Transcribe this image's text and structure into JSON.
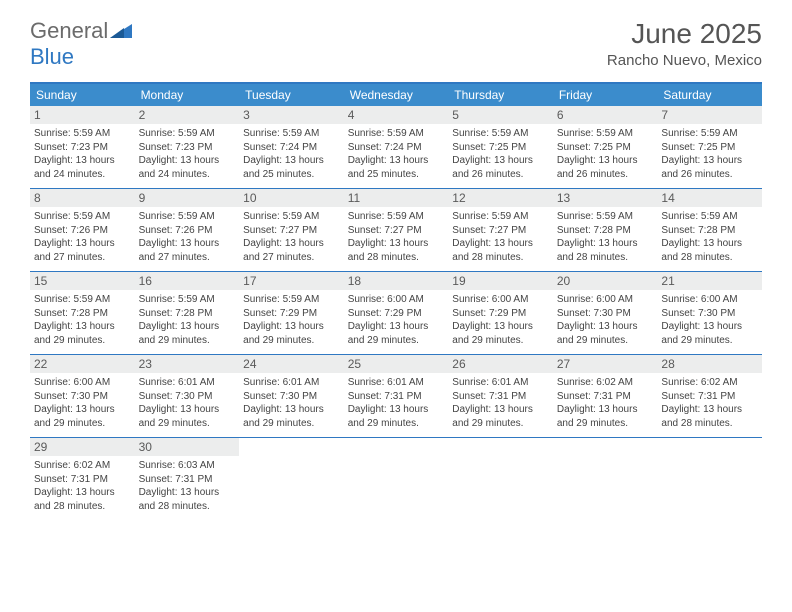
{
  "logo": {
    "part1": "General",
    "part2": "Blue"
  },
  "title": "June 2025",
  "location": "Rancho Nuevo, Mexico",
  "colors": {
    "header_bg": "#3b8ccc",
    "border": "#2f78c2",
    "daynum_bg": "#eceded",
    "text": "#444444"
  },
  "day_headers": [
    "Sunday",
    "Monday",
    "Tuesday",
    "Wednesday",
    "Thursday",
    "Friday",
    "Saturday"
  ],
  "weeks": [
    [
      {
        "n": "1",
        "sr": "5:59 AM",
        "ss": "7:23 PM",
        "dl": "13 hours and 24 minutes."
      },
      {
        "n": "2",
        "sr": "5:59 AM",
        "ss": "7:23 PM",
        "dl": "13 hours and 24 minutes."
      },
      {
        "n": "3",
        "sr": "5:59 AM",
        "ss": "7:24 PM",
        "dl": "13 hours and 25 minutes."
      },
      {
        "n": "4",
        "sr": "5:59 AM",
        "ss": "7:24 PM",
        "dl": "13 hours and 25 minutes."
      },
      {
        "n": "5",
        "sr": "5:59 AM",
        "ss": "7:25 PM",
        "dl": "13 hours and 26 minutes."
      },
      {
        "n": "6",
        "sr": "5:59 AM",
        "ss": "7:25 PM",
        "dl": "13 hours and 26 minutes."
      },
      {
        "n": "7",
        "sr": "5:59 AM",
        "ss": "7:25 PM",
        "dl": "13 hours and 26 minutes."
      }
    ],
    [
      {
        "n": "8",
        "sr": "5:59 AM",
        "ss": "7:26 PM",
        "dl": "13 hours and 27 minutes."
      },
      {
        "n": "9",
        "sr": "5:59 AM",
        "ss": "7:26 PM",
        "dl": "13 hours and 27 minutes."
      },
      {
        "n": "10",
        "sr": "5:59 AM",
        "ss": "7:27 PM",
        "dl": "13 hours and 27 minutes."
      },
      {
        "n": "11",
        "sr": "5:59 AM",
        "ss": "7:27 PM",
        "dl": "13 hours and 28 minutes."
      },
      {
        "n": "12",
        "sr": "5:59 AM",
        "ss": "7:27 PM",
        "dl": "13 hours and 28 minutes."
      },
      {
        "n": "13",
        "sr": "5:59 AM",
        "ss": "7:28 PM",
        "dl": "13 hours and 28 minutes."
      },
      {
        "n": "14",
        "sr": "5:59 AM",
        "ss": "7:28 PM",
        "dl": "13 hours and 28 minutes."
      }
    ],
    [
      {
        "n": "15",
        "sr": "5:59 AM",
        "ss": "7:28 PM",
        "dl": "13 hours and 29 minutes."
      },
      {
        "n": "16",
        "sr": "5:59 AM",
        "ss": "7:28 PM",
        "dl": "13 hours and 29 minutes."
      },
      {
        "n": "17",
        "sr": "5:59 AM",
        "ss": "7:29 PM",
        "dl": "13 hours and 29 minutes."
      },
      {
        "n": "18",
        "sr": "6:00 AM",
        "ss": "7:29 PM",
        "dl": "13 hours and 29 minutes."
      },
      {
        "n": "19",
        "sr": "6:00 AM",
        "ss": "7:29 PM",
        "dl": "13 hours and 29 minutes."
      },
      {
        "n": "20",
        "sr": "6:00 AM",
        "ss": "7:30 PM",
        "dl": "13 hours and 29 minutes."
      },
      {
        "n": "21",
        "sr": "6:00 AM",
        "ss": "7:30 PM",
        "dl": "13 hours and 29 minutes."
      }
    ],
    [
      {
        "n": "22",
        "sr": "6:00 AM",
        "ss": "7:30 PM",
        "dl": "13 hours and 29 minutes."
      },
      {
        "n": "23",
        "sr": "6:01 AM",
        "ss": "7:30 PM",
        "dl": "13 hours and 29 minutes."
      },
      {
        "n": "24",
        "sr": "6:01 AM",
        "ss": "7:30 PM",
        "dl": "13 hours and 29 minutes."
      },
      {
        "n": "25",
        "sr": "6:01 AM",
        "ss": "7:31 PM",
        "dl": "13 hours and 29 minutes."
      },
      {
        "n": "26",
        "sr": "6:01 AM",
        "ss": "7:31 PM",
        "dl": "13 hours and 29 minutes."
      },
      {
        "n": "27",
        "sr": "6:02 AM",
        "ss": "7:31 PM",
        "dl": "13 hours and 29 minutes."
      },
      {
        "n": "28",
        "sr": "6:02 AM",
        "ss": "7:31 PM",
        "dl": "13 hours and 28 minutes."
      }
    ],
    [
      {
        "n": "29",
        "sr": "6:02 AM",
        "ss": "7:31 PM",
        "dl": "13 hours and 28 minutes."
      },
      {
        "n": "30",
        "sr": "6:03 AM",
        "ss": "7:31 PM",
        "dl": "13 hours and 28 minutes."
      },
      null,
      null,
      null,
      null,
      null
    ]
  ],
  "labels": {
    "sunrise": "Sunrise:",
    "sunset": "Sunset:",
    "daylight": "Daylight:"
  }
}
